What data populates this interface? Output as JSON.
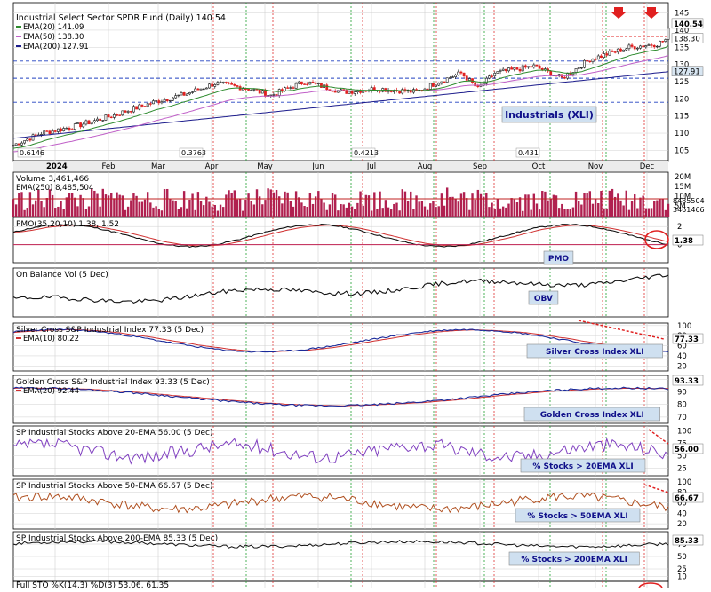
{
  "chart_data": [
    {
      "type": "line",
      "title": "Industrial Select Sector SPDR Fund (Daily) 140.54",
      "ylim": [
        102,
        148
      ],
      "y_ticks": [
        105,
        110,
        115,
        120,
        125,
        130,
        135,
        140,
        145
      ],
      "annotation": "Industrials (XLI)",
      "low_labels": [
        "0.6146",
        "0.3763",
        "0.4213",
        "0.431"
      ],
      "legend": [
        {
          "label": "EMA(20) 141.09",
          "color": "#2e8b2e"
        },
        {
          "label": "EMA(50) 138.30",
          "color": "#c060c8"
        },
        {
          "label": "EMA(200) 127.91",
          "color": "#1c1c8c"
        }
      ],
      "right_labels": [
        {
          "text": "140.54",
          "value": 140.54
        },
        {
          "text": "138.30",
          "value": 138.3
        },
        {
          "text": "127.91",
          "value": 127.91
        }
      ],
      "hlines": [
        131,
        126,
        119
      ]
    },
    {
      "type": "bar",
      "title": "Volume 3,461,466",
      "subtitle": "EMA(250) 8,485,504",
      "y_ticks": [
        "20M",
        "15M",
        "10M",
        "5M"
      ],
      "right_labels": [
        "8485504",
        "3461466"
      ]
    },
    {
      "type": "line",
      "title": "PMO(35,20,10) 1.38, 1.52",
      "annotation": "PMO",
      "y_ticks": [
        "2",
        "0"
      ],
      "right_labels": [
        "1.38"
      ]
    },
    {
      "type": "line",
      "title": "On Balance Vol (5 Dec)",
      "annotation": "OBV"
    },
    {
      "type": "line",
      "title": "Silver Cross S&P Industrial Index 77.33 (5 Dec)",
      "subtitle": "EMA(10) 80.22",
      "annotation": "Silver Cross Index XLI",
      "y_ticks": [
        "100",
        "80",
        "60",
        "40",
        "20"
      ],
      "right_labels": [
        "77.33"
      ]
    },
    {
      "type": "line",
      "title": "Golden Cross S&P Industrial Index 93.33 (5 Dec)",
      "subtitle": "EMA(20) 92.44",
      "annotation": "Golden Cross Index XLI",
      "y_ticks": [
        "100",
        "90",
        "80",
        "70"
      ],
      "right_labels": [
        "93.33"
      ]
    },
    {
      "type": "line",
      "title": "SP Industrial Stocks Above 20-EMA 56.00 (5 Dec)",
      "annotation": "% Stocks > 20EMA XLI",
      "y_ticks": [
        "100",
        "75",
        "50",
        "25"
      ],
      "right_labels": [
        "56.00"
      ]
    },
    {
      "type": "line",
      "title": "SP Industrial Stocks Above 50-EMA 66.67 (5 Dec)",
      "annotation": "% Stocks > 50EMA XLI",
      "y_ticks": [
        "100",
        "80",
        "60",
        "40",
        "20"
      ],
      "right_labels": [
        "66.67"
      ]
    },
    {
      "type": "line",
      "title": "SP Industrial Stocks Above 200-EMA 85.33 (5 Dec)",
      "annotation": "% Stocks > 200EMA XLI",
      "y_ticks": [
        "75",
        "50",
        "25",
        "10"
      ],
      "right_labels": [
        "85.33"
      ]
    },
    {
      "type": "line",
      "title": "Full STO %K(14,3) %D(3) 53.06, 61.35"
    }
  ],
  "x_axis": {
    "labels": [
      "2024",
      "Feb",
      "Mar",
      "Apr",
      "May",
      "Jun",
      "Jul",
      "Aug",
      "Sep",
      "Oct",
      "Nov",
      "Dec"
    ]
  },
  "colors": {
    "up": "#1a1a1a",
    "down": "#e02020",
    "volume": "#b02050",
    "annotation_bg": "#cfe0f0",
    "annotation_text": "#10108a",
    "grid": "#d0d0d0"
  }
}
